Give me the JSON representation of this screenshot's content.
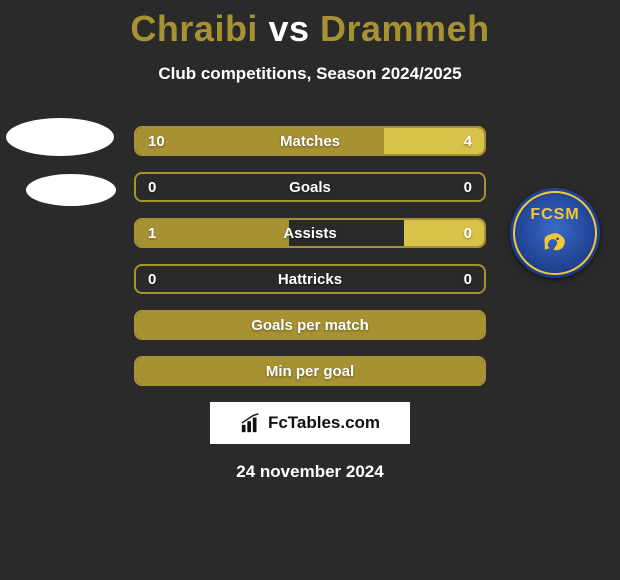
{
  "title_color": "#a69133",
  "player1": "Chraibi",
  "vs_word": "vs",
  "player2": "Drammeh",
  "subtitle": "Club competitions, Season 2024/2025",
  "badge_text": "FCSM",
  "badge_colors": {
    "ring": "#f3c838",
    "text": "#f3c838"
  },
  "left_bar_color": "#a69133",
  "right_bar_color": "#d9c24a",
  "border_color": "#a69133",
  "rows": [
    {
      "label": "Matches",
      "left": "10",
      "right": "4",
      "left_pct": 71.4,
      "right_pct": 28.6
    },
    {
      "label": "Goals",
      "left": "0",
      "right": "0",
      "left_pct": 0,
      "right_pct": 0
    },
    {
      "label": "Assists",
      "left": "1",
      "right": "0",
      "left_pct": 44,
      "right_pct": 23
    },
    {
      "label": "Hattricks",
      "left": "0",
      "right": "0",
      "left_pct": 0,
      "right_pct": 0
    },
    {
      "label": "Goals per match",
      "left": "",
      "right": "",
      "left_pct": 100,
      "right_pct": 0
    },
    {
      "label": "Min per goal",
      "left": "",
      "right": "",
      "left_pct": 100,
      "right_pct": 0
    }
  ],
  "watermark": "FcTables.com",
  "date": "24 november 2024"
}
